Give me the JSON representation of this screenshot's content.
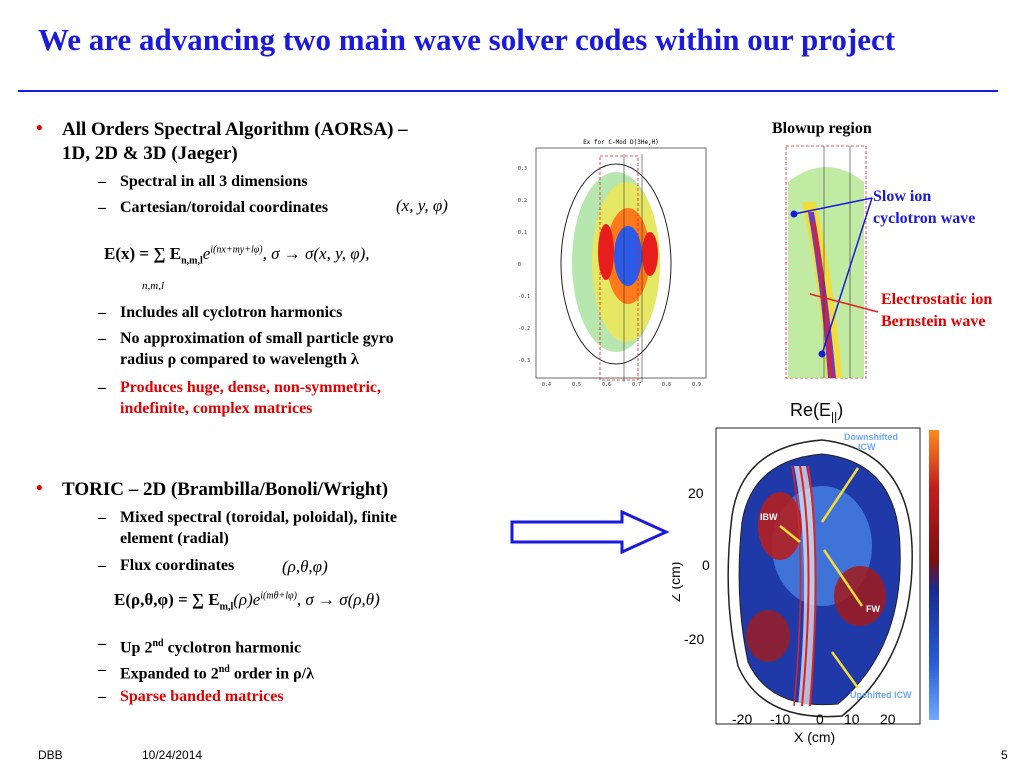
{
  "title": "We are advancing two main wave solver codes within our project",
  "aorsa": {
    "heading_line1": "All Orders Spectral Algorithm (AORSA) –",
    "heading_line2": "1D, 2D & 3D (Jaeger)",
    "items": [
      "Spectral in all 3 dimensions",
      "Cartesian/toroidal coordinates",
      "Includes all cyclotron harmonics",
      "No approximation of small particle gyro",
      "radius ρ compared to wavelength λ",
      "Produces huge, dense, non-symmetric,",
      "indefinite, complex matrices"
    ],
    "coords": "(x, y, φ)",
    "equation": "E(x) = ∑ E",
    "eq_sub": "n,m,l",
    "eq_exp": "i(nx+my+lφ)",
    "eq_right": ",    σ → σ(x, y, φ),",
    "eq_sum_index": "n,m,l"
  },
  "toric": {
    "heading": "TORIC –  2D (Brambilla/Bonoli/Wright)",
    "items": [
      "Mixed spectral (toroidal, poloidal), finite",
      "element (radial)",
      "Flux coordinates",
      "Up 2",
      "nd",
      " cyclotron harmonic",
      "Expanded to 2",
      "nd",
      " order in ρ/λ",
      "Sparse banded matrices"
    ],
    "coords": "(ρ,θ,φ)",
    "equation": "E(ρ,θ,φ) = ∑ E",
    "eq_sub": "m,l",
    "eq_mid": "(ρ)e",
    "eq_exp": "i(mθ+lφ)",
    "eq_right": ",    σ → σ(ρ,θ)"
  },
  "figure_labels": {
    "blowup": "Blowup region",
    "slow_ion_1": "Slow ion",
    "slow_ion_2": "cyclotron wave",
    "ebw_1": "Electrostatic ion",
    "ebw_2": "Bernstein wave",
    "plot_title": "Re(E",
    "plot_title_sub": "||",
    "plot_title_close": ")",
    "downshifted": "Downshifted",
    "downshifted_2": "ICW",
    "ibw": "IBW",
    "fw": "FW",
    "upshifted": "Upshifted ICW",
    "xlabel": "X (cm)",
    "ylabel": "Z (cm)",
    "xticks": [
      "-20",
      "-10",
      "0",
      "10",
      "20"
    ],
    "yticks": [
      "20",
      "0",
      "-20"
    ],
    "aorsa_plot_title": "Ex for C-Mod D(3He,H)",
    "aorsa_xticks": [
      "0.4",
      "0.5",
      "0.6",
      "0.7",
      "0.8",
      "0.9"
    ],
    "aorsa_yticks": [
      "0.3",
      "0.2",
      "0.1",
      "0",
      "-0.1",
      "-0.2",
      "-0.3"
    ]
  },
  "footer": {
    "left": "DBB",
    "date": "10/24/2014",
    "page": "5"
  },
  "colors": {
    "title": "#1a1adc",
    "accent_red": "#e00000"
  }
}
